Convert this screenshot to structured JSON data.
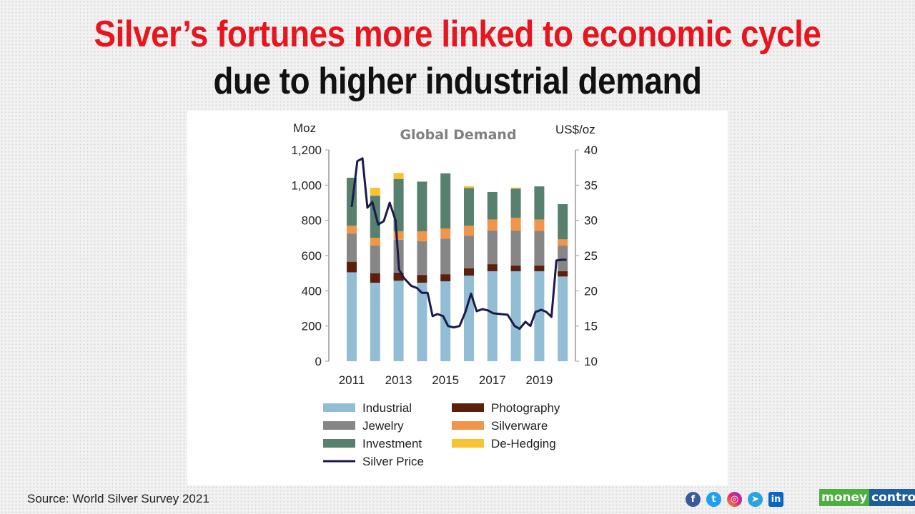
{
  "title_line1": "Silver’s fortunes more linked to economic cycle",
  "title_line2": "due to higher industrial demand",
  "source": "Source: World Silver Survey 2021",
  "social_icons": [
    "facebook-icon",
    "twitter-icon",
    "instagram-icon",
    "telegram-icon",
    "linkedin-icon"
  ],
  "logo": {
    "part1": "money",
    "part2": "control",
    "colors": {
      "part1": "#4caf3e",
      "part2": "#1f5f99"
    }
  },
  "colors": {
    "title": "#e8141e",
    "Industrial": "#93bdd4",
    "Photography": "#5a1f0d",
    "Jewelry": "#868686",
    "Silverware": "#f0954a",
    "Investment": "#57806f",
    "De-Hedging": "#f8c331",
    "Silver Price": "#1b1a4a"
  },
  "chart_data": {
    "type": "bar",
    "stacked": true,
    "title": "Global Demand",
    "ylabel": "Moz",
    "y2label": "US$/oz",
    "ylim": [
      0,
      1200
    ],
    "y2lim": [
      10,
      40
    ],
    "yticks": [
      "0",
      "200",
      "400",
      "600",
      "800",
      "1,000",
      "1,200"
    ],
    "y2ticks": [
      "10",
      "15",
      "20",
      "25",
      "30",
      "35",
      "40"
    ],
    "xticklabels": [
      "2011",
      "2013",
      "2015",
      "2017",
      "2019"
    ],
    "categories": [
      2011,
      2012,
      2013,
      2014,
      2015,
      2016,
      2017,
      2018,
      2019,
      2020
    ],
    "legend_placement": "bottom",
    "series": [
      {
        "name": "Industrial",
        "values": [
          505,
          446,
          457,
          446,
          454,
          486,
          511,
          511,
          511,
          481
        ]
      },
      {
        "name": "Photography",
        "values": [
          60,
          54,
          46,
          44,
          40,
          41,
          40,
          32,
          32,
          30
        ]
      },
      {
        "name": "Jewelry",
        "values": [
          160,
          157,
          187,
          192,
          202,
          186,
          192,
          200,
          197,
          146
        ]
      },
      {
        "name": "Silverware",
        "values": [
          45,
          44,
          48,
          56,
          58,
          57,
          62,
          72,
          65,
          35
        ]
      },
      {
        "name": "Investment",
        "values": [
          272,
          239,
          297,
          282,
          313,
          214,
          156,
          165,
          188,
          200
        ]
      },
      {
        "name": "De-Hedging",
        "values": [
          0,
          45,
          34,
          0,
          0,
          10,
          0,
          6,
          0,
          0
        ]
      }
    ],
    "line": {
      "name": "Silver Price",
      "axis": "right",
      "x": [
        2011.0,
        2011.24,
        2011.46,
        2011.67,
        2011.88,
        2012.13,
        2012.37,
        2012.62,
        2012.87,
        2013.02,
        2013.23,
        2013.54,
        2013.78,
        2014.0,
        2014.24,
        2014.45,
        2014.66,
        2014.9,
        2015.11,
        2015.35,
        2015.6,
        2015.85,
        2016.09,
        2016.33,
        2016.58,
        2016.82,
        2017.04,
        2017.34,
        2017.65,
        2017.95,
        2018.16,
        2018.41,
        2018.62,
        2018.84,
        2019.09,
        2019.3,
        2019.52,
        2019.73,
        2019.95,
        2020.16
      ],
      "values": [
        31.9,
        38.4,
        38.8,
        31.8,
        32.6,
        29.4,
        29.9,
        32.5,
        30.0,
        23.0,
        21.8,
        20.7,
        20.4,
        19.7,
        19.7,
        16.4,
        16.7,
        16.4,
        15.0,
        14.8,
        15.0,
        17.0,
        19.6,
        17.1,
        17.4,
        17.2,
        16.8,
        16.7,
        16.6,
        15.0,
        14.6,
        15.6,
        15.0,
        17.0,
        17.3,
        17.0,
        16.3,
        24.3,
        24.4,
        24.4
      ]
    }
  }
}
